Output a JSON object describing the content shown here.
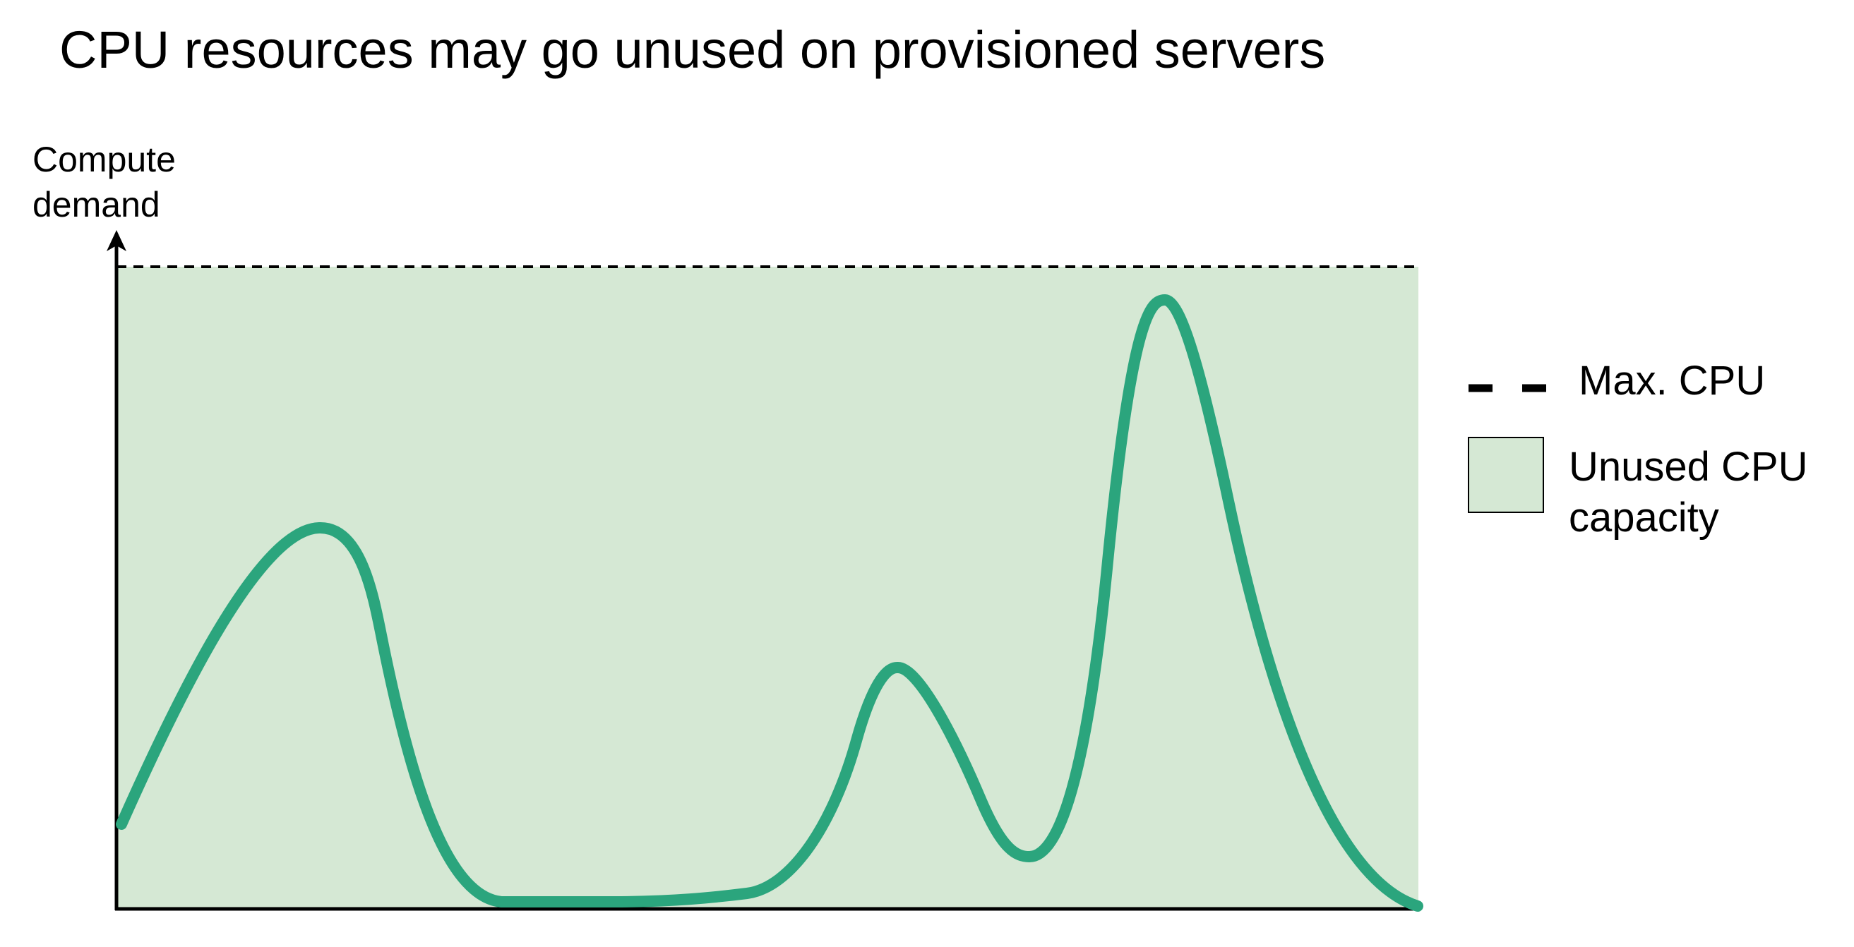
{
  "title": "CPU resources may go unused on provisioned servers",
  "y_axis": {
    "label_line1": "Compute",
    "label_line2": "demand"
  },
  "legend": {
    "max_cpu": {
      "label": "Max. CPU",
      "style": "dashed",
      "color": "#000000"
    },
    "unused_capacity": {
      "label_line1": "Unused CPU",
      "label_line2": "capacity",
      "color": "#d5e8d4"
    }
  },
  "colors": {
    "demand_line": "#2ba57d",
    "unused_fill": "#d5e8d4",
    "axis": "#000000"
  }
}
